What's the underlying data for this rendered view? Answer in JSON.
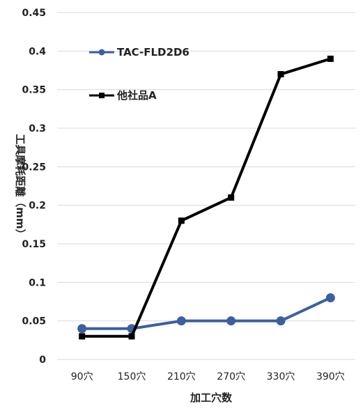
{
  "chart_data": {
    "type": "line",
    "categories": [
      "90穴",
      "150穴",
      "210穴",
      "270穴",
      "330穴",
      "390穴"
    ],
    "series": [
      {
        "name": "TAC-FLD2D6",
        "values": [
          0.04,
          0.04,
          0.05,
          0.05,
          0.05,
          0.08
        ],
        "color": "#3c5fa0",
        "marker": "circle"
      },
      {
        "name": "他社品A",
        "values": [
          0.03,
          0.03,
          0.18,
          0.21,
          0.37,
          0.39
        ],
        "color": "#000000",
        "marker": "square"
      }
    ],
    "xlabel": "加工穴数",
    "ylabel": "工具摩耗距離（mm）",
    "ylim": [
      0,
      0.45
    ],
    "yticks": [
      "0",
      "0.05",
      "0.1",
      "0.15",
      "0.2",
      "0.25",
      "0.3",
      "0.35",
      "0.4",
      "0.45"
    ],
    "grid": true,
    "legend_position": "top-left"
  }
}
